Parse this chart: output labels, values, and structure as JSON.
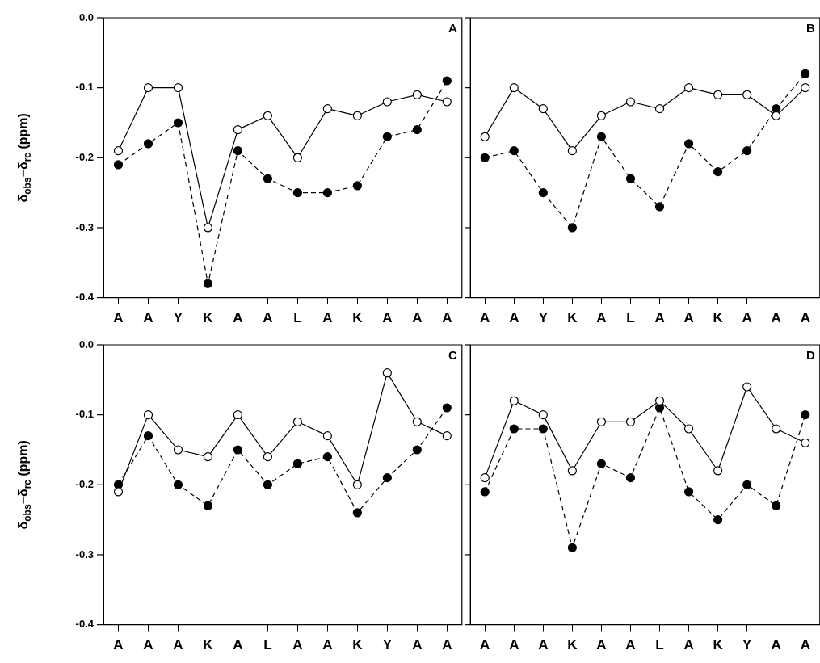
{
  "chart_data": [
    {
      "type": "line",
      "title": "A",
      "ylabel": "δ$_{obs}$−δ$_{rc}$ (ppm)",
      "categories": [
        "A",
        "A",
        "Y",
        "K",
        "A",
        "A",
        "L",
        "A",
        "K",
        "A",
        "A",
        "A"
      ],
      "ylim": [
        -0.4,
        0
      ],
      "yticks": [
        -0.4,
        -0.3,
        -0.2,
        -0.1,
        {
          "value": 0,
          "label": "0.0"
        }
      ],
      "marker": "circle",
      "legend": false,
      "series": [
        {
          "color": "#000000",
          "line_style": "solid",
          "values": [
            -0.19,
            -0.1,
            -0.1,
            -0.3,
            -0.16,
            -0.14,
            -0.2,
            -0.13,
            -0.14,
            -0.12,
            -0.11,
            -0.12
          ]
        },
        {
          "color": "#000000",
          "line_style": "dashed",
          "values": [
            -0.21,
            -0.18,
            -0.15,
            -0.38,
            -0.19,
            -0.23,
            -0.25,
            -0.25,
            -0.24,
            -0.17,
            -0.16,
            -0.09
          ]
        }
      ]
    },
    {
      "type": "line",
      "title": "B",
      "categories": [
        "A",
        "A",
        "Y",
        "K",
        "A",
        "L",
        "A",
        "A",
        "K",
        "A",
        "A",
        "A"
      ],
      "ylim": [
        -0.4,
        0
      ],
      "yticks": [
        -0.4,
        -0.3,
        -0.2,
        -0.1,
        0
      ],
      "tick_labels": "x",
      "marker": "circle",
      "legend": false,
      "series": [
        {
          "color": "#000000",
          "line_style": "solid",
          "values": [
            -0.17,
            -0.1,
            -0.13,
            -0.19,
            -0.14,
            -0.12,
            -0.13,
            -0.1,
            -0.11,
            -0.11,
            -0.14,
            -0.1
          ]
        },
        {
          "color": "#000000",
          "line_style": "dashed",
          "values": [
            -0.2,
            -0.19,
            -0.25,
            -0.3,
            -0.17,
            -0.23,
            -0.27,
            -0.18,
            -0.22,
            -0.19,
            -0.13,
            -0.08
          ]
        }
      ]
    },
    {
      "type": "line",
      "title": "C",
      "ylabel": "δ$_{obs}$−δ$_{rc}$ (ppm)",
      "categories": [
        "A",
        "A",
        "A",
        "K",
        "A",
        "L",
        "A",
        "A",
        "K",
        "Y",
        "A",
        "A"
      ],
      "ylim": [
        -0.4,
        0
      ],
      "yticks": [
        -0.4,
        -0.3,
        -0.2,
        -0.1,
        {
          "value": 0,
          "label": "0.0"
        }
      ],
      "marker": "circle",
      "legend": false,
      "series": [
        {
          "color": "#000000",
          "line_style": "solid",
          "values": [
            -0.21,
            -0.1,
            -0.15,
            -0.16,
            -0.1,
            -0.16,
            -0.11,
            -0.13,
            -0.2,
            -0.04,
            -0.11,
            -0.13
          ]
        },
        {
          "color": "#000000",
          "line_style": "dashed",
          "values": [
            -0.2,
            -0.13,
            -0.2,
            -0.23,
            -0.15,
            -0.2,
            -0.17,
            -0.16,
            -0.24,
            -0.19,
            -0.15,
            -0.09
          ]
        }
      ]
    },
    {
      "type": "line",
      "title": "D",
      "categories": [
        "A",
        "A",
        "A",
        "K",
        "A",
        "A",
        "L",
        "A",
        "K",
        "Y",
        "A",
        "A"
      ],
      "ylim": [
        -0.4,
        0
      ],
      "yticks": [
        -0.4,
        -0.3,
        -0.2,
        -0.1,
        0
      ],
      "tick_labels": "x",
      "marker": "circle",
      "legend": false,
      "series": [
        {
          "color": "#000000",
          "line_style": "solid",
          "values": [
            -0.19,
            -0.08,
            -0.1,
            -0.18,
            -0.11,
            -0.11,
            -0.08,
            -0.12,
            -0.18,
            -0.06,
            -0.12,
            -0.14
          ]
        },
        {
          "color": "#000000",
          "line_style": "dashed",
          "values": [
            -0.21,
            -0.12,
            -0.12,
            -0.29,
            -0.17,
            -0.19,
            -0.09,
            -0.21,
            -0.25,
            -0.2,
            -0.23,
            -0.1
          ]
        }
      ]
    }
  ]
}
